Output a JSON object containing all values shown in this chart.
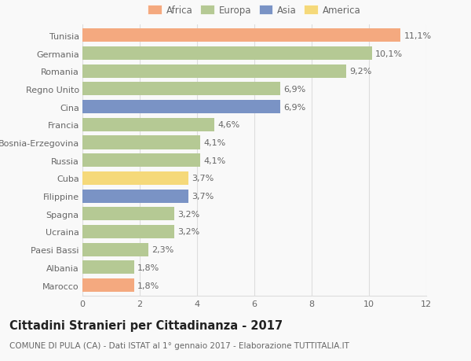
{
  "categories": [
    "Tunisia",
    "Germania",
    "Romania",
    "Regno Unito",
    "Cina",
    "Francia",
    "Bosnia-Erzegovina",
    "Russia",
    "Cuba",
    "Filippine",
    "Spagna",
    "Ucraina",
    "Paesi Bassi",
    "Albania",
    "Marocco"
  ],
  "values": [
    11.1,
    10.1,
    9.2,
    6.9,
    6.9,
    4.6,
    4.1,
    4.1,
    3.7,
    3.7,
    3.2,
    3.2,
    2.3,
    1.8,
    1.8
  ],
  "labels": [
    "11,1%",
    "10,1%",
    "9,2%",
    "6,9%",
    "6,9%",
    "4,6%",
    "4,1%",
    "4,1%",
    "3,7%",
    "3,7%",
    "3,2%",
    "3,2%",
    "2,3%",
    "1,8%",
    "1,8%"
  ],
  "colors": [
    "#F4A97F",
    "#B5C994",
    "#B5C994",
    "#B5C994",
    "#7A93C5",
    "#B5C994",
    "#B5C994",
    "#B5C994",
    "#F5D97A",
    "#7A93C5",
    "#B5C994",
    "#B5C994",
    "#B5C994",
    "#B5C994",
    "#F4A97F"
  ],
  "legend": {
    "Africa": "#F4A97F",
    "Europa": "#B5C994",
    "Asia": "#7A93C5",
    "America": "#F5D97A"
  },
  "xlim": [
    0,
    12
  ],
  "xticks": [
    0,
    2,
    4,
    6,
    8,
    10,
    12
  ],
  "title": "Cittadini Stranieri per Cittadinanza - 2017",
  "subtitle": "COMUNE DI PULA (CA) - Dati ISTAT al 1° gennaio 2017 - Elaborazione TUTTITALIA.IT",
  "background_color": "#f9f9f9",
  "bar_height": 0.75,
  "grid_color": "#dddddd",
  "title_fontsize": 10.5,
  "subtitle_fontsize": 7.5,
  "label_fontsize": 8,
  "tick_fontsize": 8
}
